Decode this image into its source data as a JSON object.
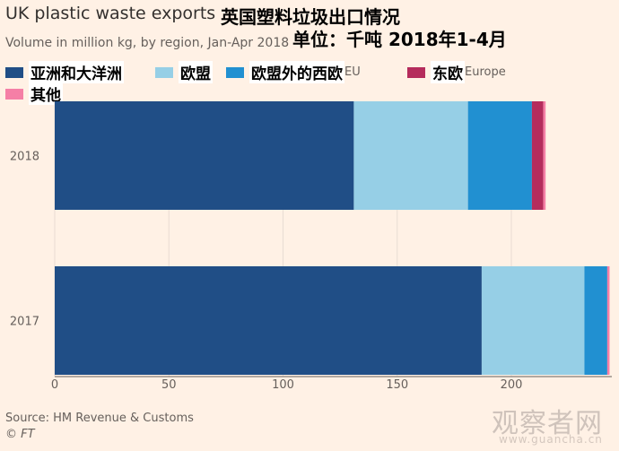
{
  "header": {
    "title": "UK plastic waste exports",
    "title_cn": "英国塑料垃圾出口情况",
    "subtitle": "Volume in million kg, by region, Jan-Apr 2018",
    "unit_cn": "单位：千吨   2018年1-4月"
  },
  "legend": [
    {
      "label_cn": "亚洲和大洋洲",
      "color": "#204e86"
    },
    {
      "label_cn": "欧盟",
      "color": "#96cfe6"
    },
    {
      "label_cn": "欧盟外的西欧",
      "label_en_visible": "EU",
      "color": "#2190d1"
    },
    {
      "label_cn": "东欧",
      "label_en_visible": "Europe",
      "color": "#b52c5c"
    },
    {
      "label_cn": "其他",
      "color": "#f57fa6"
    }
  ],
  "footer": {
    "source": "Source: HM Revenue & Customs",
    "credit": "© FT",
    "watermark": "观察者网",
    "watermark_url": "www.guancha.cn"
  },
  "chart_data": {
    "type": "bar",
    "orientation": "horizontal",
    "stacked": true,
    "categories": [
      "2018",
      "2017"
    ],
    "series": [
      {
        "name": "亚洲和大洋洲",
        "values": [
          131,
          187
        ],
        "color": "#204e86"
      },
      {
        "name": "欧盟",
        "values": [
          50,
          45
        ],
        "color": "#96cfe6"
      },
      {
        "name": "欧盟外的西欧",
        "values": [
          28,
          10
        ],
        "color": "#2190d1"
      },
      {
        "name": "东欧",
        "values": [
          5,
          0
        ],
        "color": "#b52c5c"
      },
      {
        "name": "其他",
        "values": [
          1,
          1
        ],
        "color": "#f57fa6"
      }
    ],
    "xlim": [
      0,
      244
    ],
    "xticks": [
      0,
      50,
      100,
      150,
      200
    ],
    "grid": true,
    "legend_position": "top"
  }
}
